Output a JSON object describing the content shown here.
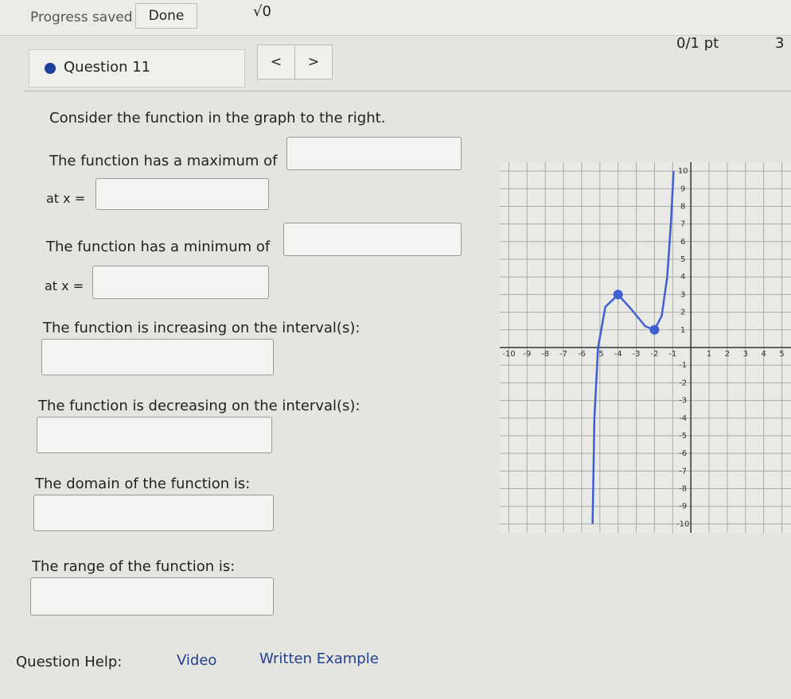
{
  "header": {
    "status": "Progress saved",
    "done": "Done",
    "math": "√0",
    "question": "Question 11",
    "prev": "<",
    "next": ">",
    "score": "0/1 pt",
    "retries": "3"
  },
  "prompts": {
    "intro": "Consider the function in the graph to the right.",
    "maximum": "The function has a maximum of",
    "max_at": "at x =",
    "minimum": "The function has a minimum of",
    "min_at": "at x =",
    "increasing": "The function is increasing on the interval(s):",
    "decreasing": "The function is decreasing on the interval(s):",
    "domain": "The domain of the function is:",
    "range": "The range of the function is:"
  },
  "help": {
    "label": "Question Help:",
    "video": "Video",
    "example": "Written Example"
  },
  "graph": {
    "xlim": [
      -10.5,
      5.5
    ],
    "ylim": [
      -10.5,
      10.5
    ],
    "xticks": [
      -10,
      -9,
      -8,
      -7,
      -6,
      -5,
      -4,
      -3,
      -2,
      -1,
      1,
      2,
      3,
      4,
      5
    ],
    "yticks": [
      10,
      9,
      8,
      7,
      6,
      5,
      4,
      3,
      2,
      1,
      -1,
      -2,
      -3,
      -4,
      -5,
      -6,
      -7,
      -8,
      -9,
      -10
    ],
    "curve": {
      "x": [
        -5.4,
        -5.3,
        -5.1,
        -4.7,
        -4,
        -3.3,
        -2.5,
        -2,
        -1.6,
        -1.3,
        -1.1,
        -0.95
      ],
      "y": [
        -10,
        -4,
        0,
        2.3,
        3,
        2.2,
        1.2,
        1,
        1.8,
        4,
        7,
        10
      ]
    },
    "points": {
      "x": [
        -4,
        -2
      ],
      "y": [
        3,
        1
      ]
    },
    "color": "#3f5fd0"
  }
}
